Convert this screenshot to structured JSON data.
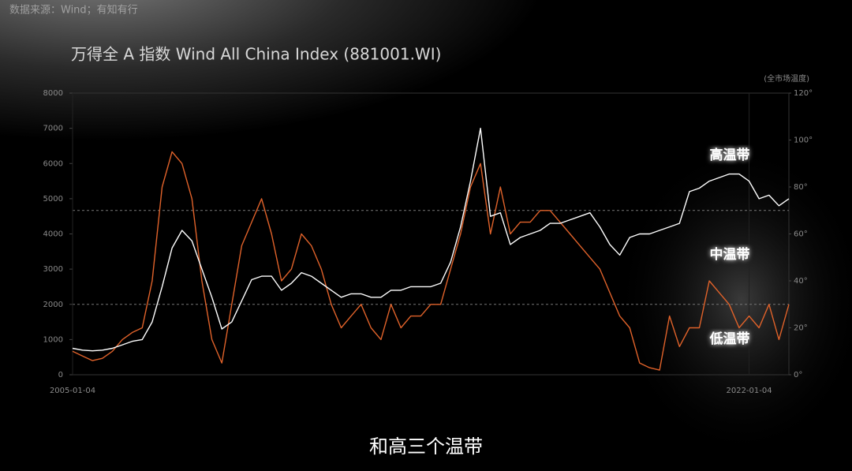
{
  "source": "数据来源：Wind；有知有行",
  "subtitle": "和高三个温带",
  "chart_data": {
    "type": "line",
    "title": "万得全 A 指数 Wind All China Index (881001.WI)",
    "y2_label": "(全市场温度)",
    "categories": [
      "2005-01-04",
      null,
      null,
      null,
      null,
      null,
      null,
      null,
      null,
      null,
      null,
      null,
      null,
      null,
      null,
      null,
      null,
      null,
      null,
      null,
      null,
      null,
      null,
      null,
      null,
      null,
      null,
      null,
      null,
      null,
      null,
      null,
      null,
      null,
      null,
      null,
      null,
      null,
      null,
      null,
      null,
      null,
      null,
      null,
      null,
      null,
      null,
      null,
      null,
      null,
      null,
      null,
      null,
      null,
      null,
      null,
      null,
      null,
      null,
      null,
      null,
      null,
      null,
      null,
      null,
      null,
      null,
      null,
      "2022-01-04",
      null,
      null,
      null,
      null
    ],
    "series": [
      {
        "color": "#ffffff",
        "values": [
          750,
          700,
          680,
          700,
          750,
          850,
          950,
          1000,
          1500,
          2500,
          3600,
          4100,
          3800,
          3000,
          2200,
          1300,
          1500,
          2100,
          2700,
          2800,
          2800,
          2400,
          2600,
          2900,
          2800,
          2600,
          2400,
          2200,
          2300,
          2300,
          2200,
          2200,
          2400,
          2400,
          2500,
          2500,
          2500,
          2600,
          3200,
          4200,
          5500,
          7000,
          4500,
          4600,
          3700,
          3900,
          4000,
          4100,
          4300,
          4300,
          4400,
          4500,
          4600,
          4200,
          3700,
          3400,
          3900,
          4000,
          4000,
          4100,
          4200,
          4300,
          5200,
          5300,
          5500,
          5600,
          5700,
          5700,
          5500,
          5000,
          5100,
          4800,
          5000
        ]
      },
      {
        "color": "#e0622a",
        "axis": "y2",
        "values": [
          10,
          8,
          6,
          7,
          10,
          15,
          18,
          20,
          40,
          80,
          95,
          90,
          75,
          40,
          15,
          5,
          30,
          55,
          65,
          75,
          60,
          40,
          45,
          60,
          55,
          45,
          30,
          20,
          25,
          30,
          20,
          15,
          30,
          20,
          25,
          25,
          30,
          30,
          45,
          60,
          80,
          90,
          60,
          80,
          60,
          65,
          65,
          70,
          70,
          65,
          60,
          55,
          50,
          45,
          35,
          25,
          20,
          5,
          3,
          2,
          25,
          12,
          20,
          20,
          40,
          35,
          30,
          20,
          25,
          20,
          30,
          15,
          30
        ]
      }
    ],
    "ylim": [
      0,
      8000
    ],
    "yticks": [
      0,
      1000,
      2000,
      3000,
      4000,
      5000,
      6000,
      7000,
      8000
    ],
    "y2lim": [
      0,
      120
    ],
    "y2ticks": [
      {
        "value": 0,
        "label": "0°"
      },
      {
        "value": 20,
        "label": "20°"
      },
      {
        "value": 40,
        "label": "40°"
      },
      {
        "value": 60,
        "label": "60°"
      },
      {
        "value": 80,
        "label": "80°"
      },
      {
        "value": 100,
        "label": "100°"
      },
      {
        "value": 120,
        "label": "120°"
      }
    ],
    "reference_lines": {
      "axis": "y2",
      "values": [
        30,
        70
      ]
    },
    "annotations": [
      "高温带",
      "中温带",
      "低温带"
    ]
  }
}
